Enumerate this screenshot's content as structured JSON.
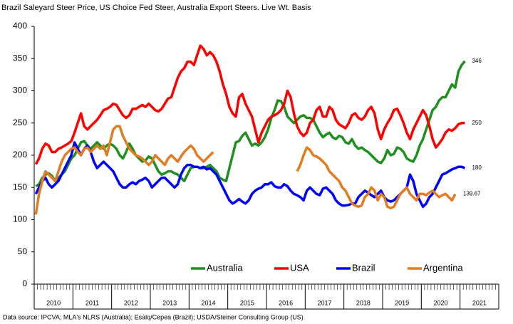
{
  "chart_data": {
    "type": "line",
    "title": "Brazil Saleyard Steer Price, US Choice Fed Steer, Australia Export Steers.  Live Wt. Basis",
    "source": "Data source:  IPCVA; MLA's NLRS (Australia); Esalq/Cepea (Brazil); USDA/Steiner Consulting Group (US)",
    "categories": [
      null,
      null,
      null,
      null,
      null,
      null,
      "2010",
      null,
      null,
      null,
      null,
      null,
      null,
      null,
      null,
      null,
      null,
      null,
      "2011",
      null,
      null,
      null,
      null,
      null,
      null,
      null,
      null,
      null,
      null,
      null,
      "2012",
      null,
      null,
      null,
      null,
      null,
      null,
      null,
      null,
      null,
      null,
      null,
      "2013",
      null,
      null,
      null,
      null,
      null,
      null,
      null,
      null,
      null,
      null,
      null,
      "2014",
      null,
      null,
      null,
      null,
      null,
      null,
      null,
      null,
      null,
      null,
      null,
      "2015",
      null,
      null,
      null,
      null,
      null,
      null,
      null,
      null,
      null,
      null,
      null,
      "2016",
      null,
      null,
      null,
      null,
      null,
      null,
      null,
      null,
      null,
      null,
      null,
      "2017",
      null,
      null,
      null,
      null,
      null,
      null,
      null,
      null,
      null,
      null,
      null,
      "2018",
      null,
      null,
      null,
      null,
      null,
      null,
      null,
      null,
      null,
      null,
      null,
      "2019",
      null,
      null,
      null,
      null,
      null,
      null,
      null,
      null,
      null,
      null,
      null,
      "2020",
      null,
      null,
      null,
      null,
      null,
      null,
      null,
      null,
      null,
      null,
      null,
      "2021",
      null,
      null,
      null,
      null,
      null
    ],
    "ylim": [
      0,
      400
    ],
    "yticks": [
      0,
      50,
      100,
      150,
      200,
      250,
      300,
      350,
      400
    ],
    "grid": false,
    "legend": "bottom",
    "series": [
      {
        "name": "Australia",
        "color": "#1f8f1f",
        "values": [
          152,
          155,
          165,
          170,
          172,
          168,
          160,
          165,
          170,
          175,
          185,
          195,
          200,
          210,
          220,
          222,
          215,
          210,
          215,
          220,
          215,
          210,
          215,
          218,
          215,
          210,
          200,
          195,
          205,
          218,
          210,
          200,
          195,
          190,
          192,
          198,
          195,
          185,
          175,
          170,
          172,
          175,
          175,
          172,
          170,
          165,
          160,
          170,
          180,
          182,
          182,
          180,
          180,
          182,
          185,
          180,
          175,
          165,
          162,
          160,
          180,
          200,
          220,
          222,
          230,
          235,
          225,
          215,
          218,
          215,
          220,
          228,
          240,
          258,
          270,
          285,
          284,
          275,
          260,
          255,
          250,
          255,
          260,
          262,
          258,
          258,
          255,
          245,
          235,
          228,
          232,
          235,
          228,
          225,
          230,
          228,
          220,
          218,
          225,
          215,
          210,
          212,
          208,
          205,
          200,
          195,
          190,
          188,
          195,
          208,
          200,
          202,
          212,
          210,
          205,
          195,
          192,
          190,
          200,
          215,
          225,
          240,
          255,
          270,
          275,
          285,
          290,
          290,
          300,
          310,
          305,
          330,
          340,
          346,
          null,
          null,
          null,
          null,
          null,
          null,
          null,
          null,
          null,
          null
        ]
      },
      {
        "name": "USA",
        "color": "#ff0000",
        "values": [
          186,
          195,
          210,
          218,
          215,
          205,
          205,
          210,
          212,
          215,
          218,
          222,
          235,
          250,
          265,
          245,
          240,
          245,
          250,
          255,
          262,
          270,
          272,
          275,
          280,
          278,
          270,
          262,
          258,
          262,
          272,
          272,
          275,
          278,
          275,
          280,
          275,
          270,
          268,
          272,
          280,
          288,
          290,
          305,
          320,
          330,
          335,
          345,
          345,
          340,
          355,
          370,
          365,
          355,
          360,
          355,
          345,
          330,
          310,
          295,
          275,
          265,
          260,
          290,
          295,
          280,
          270,
          260,
          240,
          220,
          235,
          245,
          255,
          260,
          262,
          265,
          270,
          280,
          300,
          290,
          265,
          245,
          235,
          230,
          235,
          250,
          255,
          270,
          275,
          260,
          260,
          275,
          270,
          255,
          248,
          245,
          242,
          250,
          262,
          265,
          258,
          255,
          260,
          270,
          275,
          265,
          240,
          225,
          240,
          250,
          258,
          270,
          272,
          262,
          250,
          235,
          225,
          240,
          250,
          260,
          270,
          262,
          245,
          225,
          212,
          218,
          225,
          235,
          240,
          238,
          242,
          248,
          250,
          250,
          null,
          null,
          null,
          null,
          null,
          null,
          null,
          null,
          null,
          null
        ]
      },
      {
        "name": "Brazil",
        "color": "#0000ff",
        "values": [
          140,
          150,
          160,
          165,
          155,
          150,
          155,
          160,
          170,
          180,
          190,
          200,
          220,
          210,
          200,
          210,
          215,
          205,
          190,
          180,
          185,
          190,
          185,
          180,
          175,
          165,
          155,
          150,
          150,
          155,
          158,
          155,
          160,
          162,
          165,
          160,
          150,
          155,
          160,
          165,
          165,
          160,
          155,
          150,
          155,
          170,
          180,
          185,
          185,
          182,
          182,
          180,
          182,
          178,
          180,
          175,
          170,
          160,
          150,
          140,
          130,
          125,
          128,
          132,
          128,
          125,
          130,
          140,
          145,
          148,
          150,
          155,
          155,
          158,
          152,
          150,
          150,
          155,
          152,
          145,
          140,
          138,
          135,
          130,
          145,
          150,
          145,
          140,
          138,
          148,
          150,
          145,
          140,
          130,
          125,
          122,
          122,
          123,
          125,
          125,
          135,
          140,
          145,
          142,
          138,
          135,
          140,
          145,
          135,
          130,
          128,
          130,
          135,
          140,
          145,
          150,
          170,
          160,
          140,
          130,
          120,
          125,
          135,
          140,
          150,
          160,
          170,
          172,
          175,
          178,
          180,
          182,
          182,
          180,
          null,
          null,
          null,
          null,
          null,
          null,
          null,
          null,
          null,
          null
        ]
      },
      {
        "name": "Argentina",
        "color": "#e27c22",
        "values": [
          108,
          140,
          160,
          175,
          170,
          165,
          160,
          175,
          190,
          200,
          205,
          210,
          212,
          205,
          200,
          210,
          212,
          205,
          210,
          215,
          210,
          215,
          200,
          220,
          240,
          245,
          245,
          230,
          220,
          210,
          205,
          200,
          198,
          195,
          190,
          185,
          190,
          200,
          195,
          190,
          185,
          195,
          200,
          195,
          190,
          198,
          205,
          210,
          215,
          210,
          200,
          195,
          190,
          195,
          200,
          205,
          null,
          null,
          null,
          null,
          null,
          null,
          null,
          null,
          null,
          null,
          null,
          null,
          null,
          null,
          null,
          null,
          null,
          null,
          null,
          null,
          null,
          null,
          null,
          null,
          null,
          175,
          185,
          200,
          212,
          208,
          200,
          198,
          195,
          190,
          185,
          175,
          170,
          165,
          160,
          150,
          145,
          135,
          125,
          122,
          120,
          122,
          135,
          140,
          150,
          145,
          130,
          140,
          135,
          120,
          118,
          120,
          130,
          140,
          145,
          150,
          140,
          135,
          130,
          140,
          140,
          138,
          142,
          145,
          140,
          135,
          138,
          140,
          135,
          130,
          139.67,
          null,
          null,
          null,
          null,
          null,
          null,
          null,
          null,
          null,
          null,
          null,
          null,
          null
        ]
      }
    ]
  }
}
